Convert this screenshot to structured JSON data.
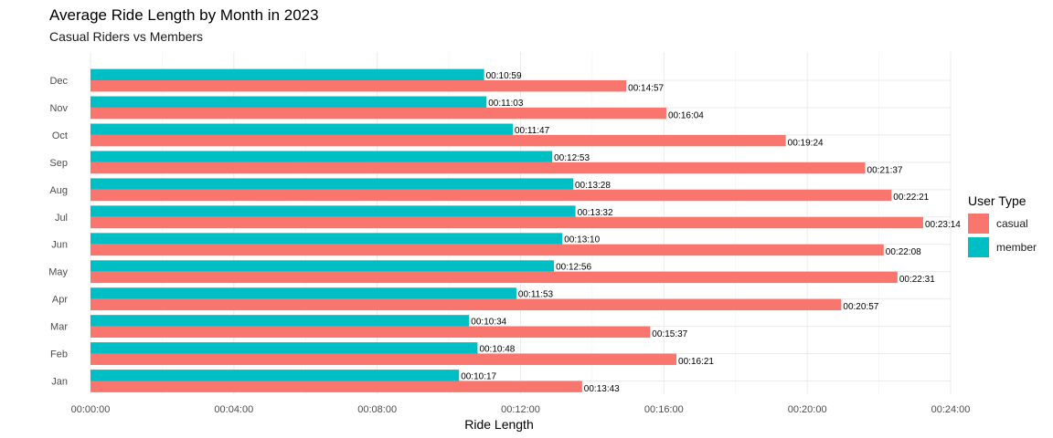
{
  "chart_data": {
    "type": "bar",
    "orientation": "horizontal",
    "title": "Average Ride Length by Month in 2023",
    "subtitle": "Casual Riders vs Members",
    "xlabel": "Ride Length",
    "ylabel": "",
    "xlim": [
      "00:00:00",
      "00:24:00"
    ],
    "x_ticks": [
      "00:00:00",
      "00:04:00",
      "00:08:00",
      "00:12:00",
      "00:16:00",
      "00:20:00",
      "00:24:00"
    ],
    "categories": [
      "Jan",
      "Feb",
      "Mar",
      "Apr",
      "May",
      "Jun",
      "Jul",
      "Aug",
      "Sep",
      "Oct",
      "Nov",
      "Dec"
    ],
    "series": [
      {
        "name": "casual",
        "color": "#F8766D",
        "values": [
          "00:13:43",
          "00:16:21",
          "00:15:37",
          "00:20:57",
          "00:22:31",
          "00:22:08",
          "00:23:14",
          "00:22:21",
          "00:21:37",
          "00:19:24",
          "00:16:04",
          "00:14:57"
        ]
      },
      {
        "name": "member",
        "color": "#00BFC4",
        "values": [
          "00:10:17",
          "00:10:48",
          "00:10:34",
          "00:11:53",
          "00:12:56",
          "00:13:10",
          "00:13:32",
          "00:13:28",
          "00:12:53",
          "00:11:47",
          "00:11:03",
          "00:10:59"
        ]
      }
    ],
    "legend": {
      "title": "User Type",
      "position": "right"
    },
    "grid": true
  }
}
